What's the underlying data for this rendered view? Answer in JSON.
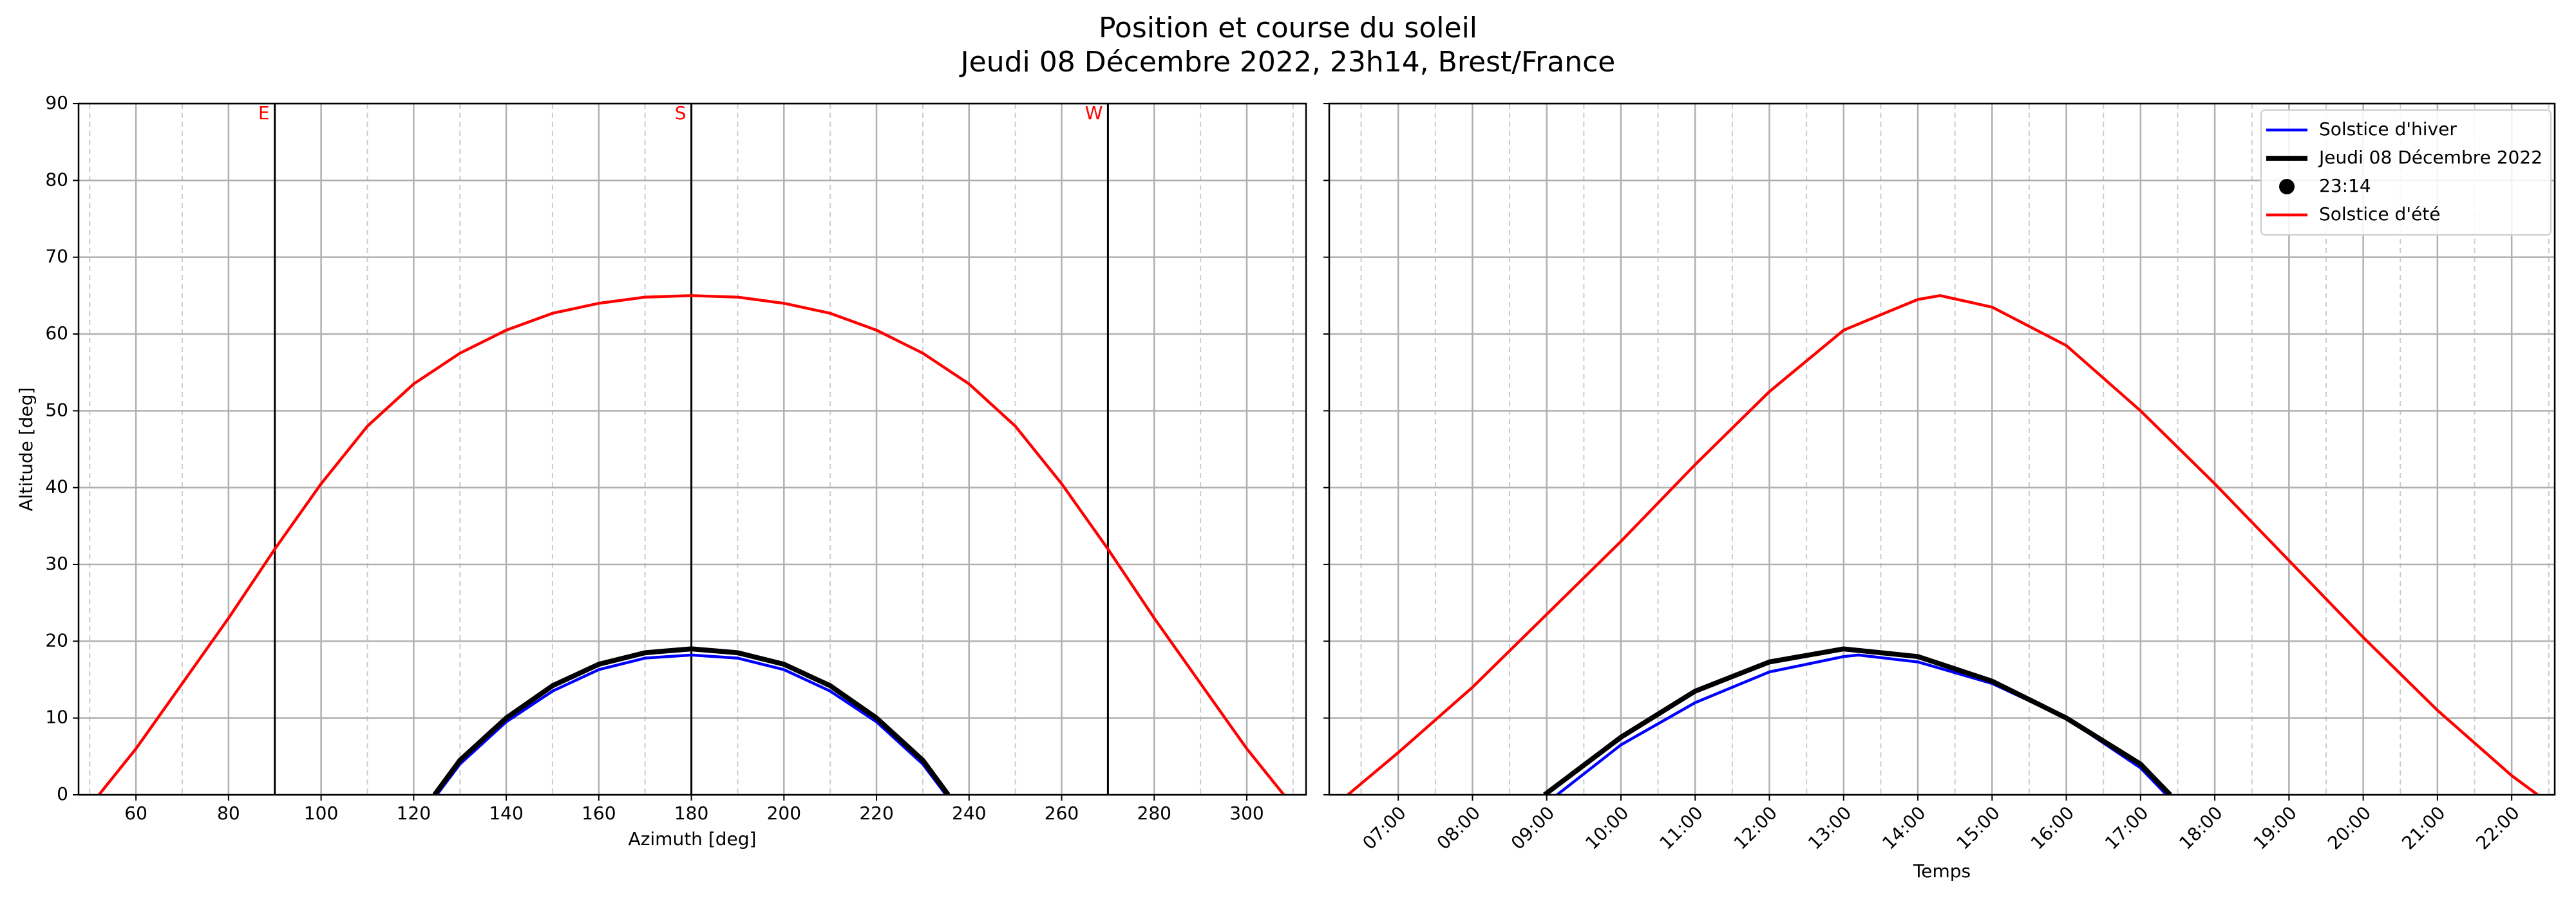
{
  "suptitle": [
    "Position et course du soleil",
    "Jeudi 08 Décembre 2022, 23h14, Brest/France"
  ],
  "chart_data": [
    {
      "type": "line",
      "xlabel": "Azimuth [deg]",
      "ylabel": "Altitude [deg]",
      "xlim": [
        47.6,
        312.8
      ],
      "xticks": [
        60,
        80,
        100,
        120,
        140,
        160,
        180,
        200,
        220,
        240,
        260,
        280,
        300
      ],
      "xticks_minor": [
        50,
        70,
        90,
        110,
        130,
        150,
        170,
        190,
        210,
        230,
        250,
        270,
        290,
        310
      ],
      "ylim": [
        0,
        90
      ],
      "yticks": [
        0,
        10,
        20,
        30,
        40,
        50,
        60,
        70,
        80,
        90
      ],
      "grid": true,
      "vlines": [
        {
          "value": 90,
          "label": "E"
        },
        {
          "value": 180,
          "label": "S"
        },
        {
          "value": 270,
          "label": "W"
        }
      ],
      "vline_color": "#000000",
      "vline_label_color": "#ff0000",
      "series": [
        {
          "name": "Solstice d'hiver",
          "color": "#0000ff",
          "width": 2,
          "x": [
            125,
            130,
            140,
            150,
            160,
            170,
            180,
            190,
            200,
            210,
            220,
            230,
            235
          ],
          "values": [
            0,
            4,
            9.5,
            13.5,
            16.3,
            17.8,
            18.2,
            17.8,
            16.3,
            13.5,
            9.5,
            4,
            0
          ]
        },
        {
          "name": "Jeudi 08 Décembre 2022",
          "color": "#000000",
          "width": 3.5,
          "x": [
            124.5,
            130,
            140,
            150,
            160,
            170,
            180,
            190,
            200,
            210,
            220,
            230,
            235.5
          ],
          "values": [
            0,
            4.5,
            10,
            14.2,
            17,
            18.5,
            19,
            18.5,
            17,
            14.2,
            10,
            4.5,
            0
          ]
        },
        {
          "name": "Solstice d'été",
          "color": "#ff0000",
          "width": 2,
          "x": [
            52,
            60,
            70,
            80,
            90,
            100,
            110,
            120,
            130,
            140,
            150,
            160,
            170,
            180,
            190,
            200,
            210,
            220,
            230,
            240,
            250,
            260,
            270,
            280,
            290,
            300,
            308
          ],
          "values": [
            0,
            6,
            14.5,
            23,
            32,
            40.5,
            48,
            53.5,
            57.5,
            60.5,
            62.7,
            64,
            64.8,
            65,
            64.8,
            64,
            62.7,
            60.5,
            57.5,
            53.5,
            48,
            40.5,
            32,
            23,
            14.5,
            6,
            0
          ]
        }
      ]
    },
    {
      "type": "line",
      "xlabel": "Temps",
      "legend": "upper right",
      "xlim": [
        6.07,
        22.58
      ],
      "xticks": [
        {
          "value": 7,
          "label": "07:00"
        },
        {
          "value": 8,
          "label": "08:00"
        },
        {
          "value": 9,
          "label": "09:00"
        },
        {
          "value": 10,
          "label": "10:00"
        },
        {
          "value": 11,
          "label": "11:00"
        },
        {
          "value": 12,
          "label": "12:00"
        },
        {
          "value": 13,
          "label": "13:00"
        },
        {
          "value": 14,
          "label": "14:00"
        },
        {
          "value": 15,
          "label": "15:00"
        },
        {
          "value": 16,
          "label": "16:00"
        },
        {
          "value": 17,
          "label": "17:00"
        },
        {
          "value": 18,
          "label": "18:00"
        },
        {
          "value": 19,
          "label": "19:00"
        },
        {
          "value": 20,
          "label": "20:00"
        },
        {
          "value": 21,
          "label": "21:00"
        },
        {
          "value": 22,
          "label": "22:00"
        }
      ],
      "xticks_minor": [
        6.5,
        7.5,
        8.5,
        9.5,
        10.5,
        11.5,
        12.5,
        13.5,
        14.5,
        15.5,
        16.5,
        17.5,
        18.5,
        19.5,
        20.5,
        21.5,
        22.5
      ],
      "ylim": [
        0,
        90
      ],
      "yticks": [
        0,
        10,
        20,
        30,
        40,
        50,
        60,
        70,
        80,
        90
      ],
      "grid": true,
      "series": [
        {
          "name": "Solstice d'hiver",
          "color": "#0000ff",
          "width": 2,
          "x": [
            9.14,
            10,
            11,
            12,
            13,
            13.2,
            14,
            15,
            16,
            17,
            17.35
          ],
          "values": [
            0,
            6.5,
            12,
            16,
            18,
            18.2,
            17.3,
            14.5,
            10,
            3.5,
            0
          ]
        },
        {
          "name": "Jeudi 08 Décembre 2022",
          "color": "#000000",
          "width": 3.5,
          "x": [
            8.97,
            10,
            11,
            12,
            13,
            14,
            15,
            16,
            17,
            17.4
          ],
          "values": [
            0,
            7.5,
            13.5,
            17.3,
            19,
            18,
            14.8,
            10,
            4,
            0
          ]
        },
        {
          "name": "23:14",
          "color": "#000000",
          "type": "scatter",
          "x": [],
          "values": []
        },
        {
          "name": "Solstice d'été",
          "color": "#ff0000",
          "width": 2,
          "x": [
            6.32,
            7,
            8,
            9,
            10,
            11,
            12,
            13,
            14,
            14.3,
            15,
            16,
            17,
            18,
            19,
            20,
            21,
            22,
            22.35
          ],
          "values": [
            0,
            5.5,
            14,
            23.5,
            33,
            43,
            52.5,
            60.5,
            64.5,
            65,
            63.5,
            58.5,
            50,
            40.5,
            30.5,
            20.5,
            11,
            2.5,
            0
          ]
        }
      ]
    }
  ]
}
